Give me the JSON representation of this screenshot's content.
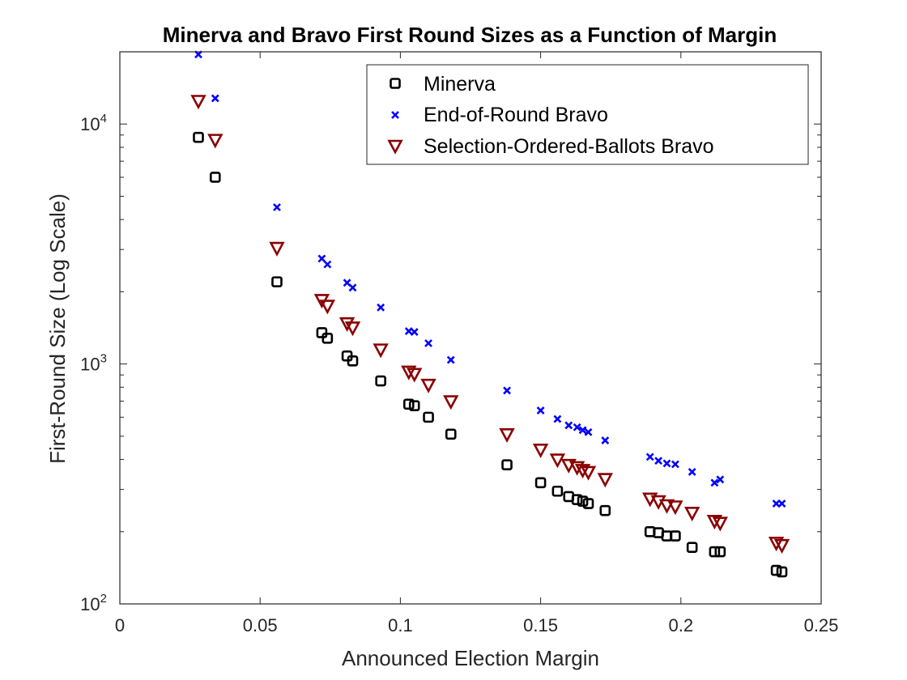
{
  "chart_data": {
    "type": "scatter",
    "title": "Minerva and Bravo First Round Sizes as a Function of Margin",
    "xlabel": "Announced Election Margin",
    "ylabel": "First-Round Size (Log Scale)",
    "xlim": [
      0,
      0.25
    ],
    "ylim": [
      100,
      20000
    ],
    "y_scale": "log",
    "x_ticks": [
      "0",
      "0.05",
      "0.1",
      "0.15",
      "0.2",
      "0.25"
    ],
    "x_tick_values": [
      0,
      0.05,
      0.1,
      0.15,
      0.2,
      0.25
    ],
    "y_ticks": [
      {
        "value": 100,
        "base": "10",
        "exp": "2"
      },
      {
        "value": 1000,
        "base": "10",
        "exp": "3"
      },
      {
        "value": 10000,
        "base": "10",
        "exp": "4"
      }
    ],
    "grid": false,
    "legend_position": "top-right",
    "series": [
      {
        "name": "Minerva",
        "marker": "square",
        "color": "#000000",
        "points": [
          [
            0.028,
            8800
          ],
          [
            0.034,
            6000
          ],
          [
            0.056,
            2200
          ],
          [
            0.072,
            1350
          ],
          [
            0.074,
            1280
          ],
          [
            0.081,
            1080
          ],
          [
            0.083,
            1030
          ],
          [
            0.093,
            850
          ],
          [
            0.103,
            680
          ],
          [
            0.105,
            670
          ],
          [
            0.11,
            600
          ],
          [
            0.118,
            510
          ],
          [
            0.138,
            380
          ],
          [
            0.15,
            320
          ],
          [
            0.156,
            295
          ],
          [
            0.16,
            280
          ],
          [
            0.163,
            272
          ],
          [
            0.165,
            268
          ],
          [
            0.167,
            262
          ],
          [
            0.173,
            245
          ],
          [
            0.189,
            200
          ],
          [
            0.192,
            198
          ],
          [
            0.195,
            192
          ],
          [
            0.198,
            192
          ],
          [
            0.204,
            172
          ],
          [
            0.212,
            165
          ],
          [
            0.214,
            165
          ],
          [
            0.234,
            138
          ],
          [
            0.236,
            136
          ]
        ]
      },
      {
        "name": "End-of-Round Bravo",
        "marker": "x",
        "color": "#0000ff",
        "points": [
          [
            0.028,
            19500
          ],
          [
            0.034,
            12800
          ],
          [
            0.056,
            4500
          ],
          [
            0.072,
            2750
          ],
          [
            0.074,
            2600
          ],
          [
            0.081,
            2180
          ],
          [
            0.083,
            2080
          ],
          [
            0.093,
            1720
          ],
          [
            0.103,
            1370
          ],
          [
            0.105,
            1360
          ],
          [
            0.11,
            1220
          ],
          [
            0.118,
            1040
          ],
          [
            0.138,
            775
          ],
          [
            0.15,
            640
          ],
          [
            0.156,
            590
          ],
          [
            0.16,
            555
          ],
          [
            0.163,
            545
          ],
          [
            0.165,
            530
          ],
          [
            0.167,
            520
          ],
          [
            0.173,
            480
          ],
          [
            0.189,
            410
          ],
          [
            0.192,
            395
          ],
          [
            0.195,
            385
          ],
          [
            0.198,
            382
          ],
          [
            0.204,
            355
          ],
          [
            0.212,
            320
          ],
          [
            0.214,
            330
          ],
          [
            0.234,
            262
          ],
          [
            0.236,
            262
          ]
        ]
      },
      {
        "name": "Selection-Ordered-Ballots Bravo",
        "marker": "triangle-down",
        "color": "#8b0000",
        "points": [
          [
            0.028,
            12500
          ],
          [
            0.034,
            8600
          ],
          [
            0.056,
            3050
          ],
          [
            0.072,
            1850
          ],
          [
            0.074,
            1750
          ],
          [
            0.081,
            1480
          ],
          [
            0.083,
            1420
          ],
          [
            0.093,
            1150
          ],
          [
            0.103,
            930
          ],
          [
            0.105,
            910
          ],
          [
            0.11,
            820
          ],
          [
            0.118,
            700
          ],
          [
            0.138,
            510
          ],
          [
            0.15,
            440
          ],
          [
            0.156,
            400
          ],
          [
            0.16,
            380
          ],
          [
            0.163,
            372
          ],
          [
            0.165,
            362
          ],
          [
            0.167,
            355
          ],
          [
            0.173,
            332
          ],
          [
            0.189,
            275
          ],
          [
            0.192,
            268
          ],
          [
            0.195,
            258
          ],
          [
            0.198,
            255
          ],
          [
            0.204,
            240
          ],
          [
            0.212,
            222
          ],
          [
            0.214,
            218
          ],
          [
            0.234,
            180
          ],
          [
            0.236,
            176
          ]
        ]
      }
    ]
  }
}
